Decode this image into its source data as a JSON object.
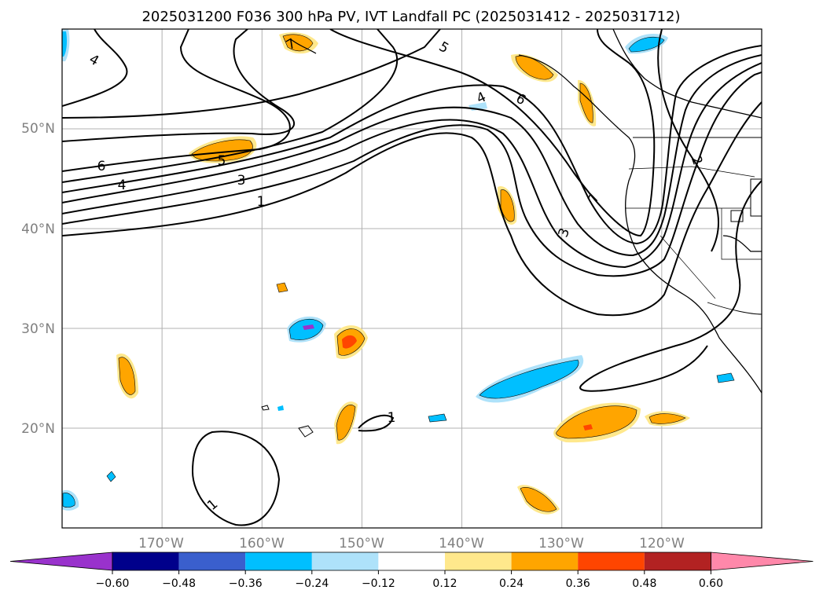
{
  "title": "2025031200 F036 300 hPa PV, IVT Landfall PC (2025031412 - 2025031712)",
  "map": {
    "projection": "PlateCarree",
    "lon_range": [
      -180,
      -110
    ],
    "lat_range": [
      10,
      60
    ],
    "gridlines": true,
    "lon_ticks": [
      -170,
      -160,
      -150,
      -140,
      -130,
      -120
    ],
    "lat_ticks": [
      20,
      30,
      40,
      50
    ],
    "lon_labels": [
      "170°W",
      "160°W",
      "150°W",
      "140°W",
      "130°W",
      "120°W"
    ],
    "lat_labels": [
      "20°N",
      "30°N",
      "40°N",
      "50°N"
    ],
    "tick_label_color": "#808080",
    "contour_labels": [
      "1",
      "3",
      "4",
      "5",
      "6",
      "4",
      "7",
      "2",
      "4",
      "5",
      "6",
      "7",
      "3",
      "1",
      "1"
    ]
  },
  "colorbar": {
    "orientation": "horizontal",
    "extend": "both",
    "ticks": [
      "-0.60",
      "-0.48",
      "-0.36",
      "-0.24",
      "-0.12",
      "0.12",
      "0.24",
      "0.36",
      "0.48",
      "0.60"
    ],
    "colors": [
      "#9932cc",
      "#00008b",
      "#3a5fcd",
      "#00bfff",
      "#aee2fa",
      "#ffffff",
      "#ffe88c",
      "#ffa500",
      "#ff4500",
      "#b22222",
      "#ff88aa"
    ]
  }
}
